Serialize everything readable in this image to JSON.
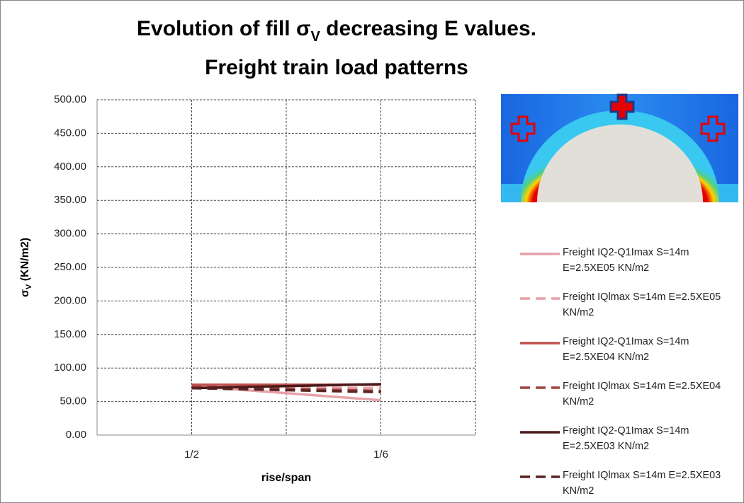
{
  "chart_data": {
    "type": "line",
    "title": {
      "pre": "Evolution of fill σ",
      "sub": "V",
      "post": " decreasing E values."
    },
    "subtitle": "Freight train load patterns",
    "ylabel": {
      "pre": "σ",
      "sub": "V",
      "post": " (KN/m2)"
    },
    "xlabel": "rise/span",
    "categories": [
      "1/2",
      "1/6"
    ],
    "ylim": [
      0,
      500
    ],
    "yticks": [
      {
        "value": 0,
        "label": "0.00"
      },
      {
        "value": 50,
        "label": "50.00"
      },
      {
        "value": 100,
        "label": "100.00"
      },
      {
        "value": 150,
        "label": "150.00"
      },
      {
        "value": 200,
        "label": "200.00"
      },
      {
        "value": 250,
        "label": "250.00"
      },
      {
        "value": 300,
        "label": "300.00"
      },
      {
        "value": 350,
        "label": "350.00"
      },
      {
        "value": 400,
        "label": "400.00"
      },
      {
        "value": 450,
        "label": "450.00"
      },
      {
        "value": 500,
        "label": "500.00"
      }
    ],
    "grid": true,
    "series": [
      {
        "name": "Freight IQ2-Q1Imax S=14m E=2.5XE05 KN/m2",
        "color": "#e6a1a8",
        "dashed": false,
        "values": [
          73,
          52
        ]
      },
      {
        "name": "Freight IQlmax S=14m E=2.5XE05 KN/m2",
        "color": "#e6a1a8",
        "dashed": true,
        "values": [
          73,
          70
        ]
      },
      {
        "name": "Freight IQ2-Q1Imax S=14m E=2.5XE04 KN/m2",
        "color": "#c0504d",
        "dashed": false,
        "values": [
          75,
          75
        ]
      },
      {
        "name": "Freight IQlmax S=14m E=2.5XE04 KN/m2",
        "color": "#a0443f",
        "dashed": true,
        "values": [
          72,
          66
        ]
      },
      {
        "name": "Freight IQ2-Q1Imax S=14m E=2.5XE03 KN/m2",
        "color": "#4a1a1a",
        "dashed": false,
        "values": [
          70,
          76
        ]
      },
      {
        "name": "Freight IQlmax S=14m E=2.5XE03 KN/m2",
        "color": "#5a2222",
        "dashed": true,
        "values": [
          70,
          64
        ]
      }
    ]
  }
}
